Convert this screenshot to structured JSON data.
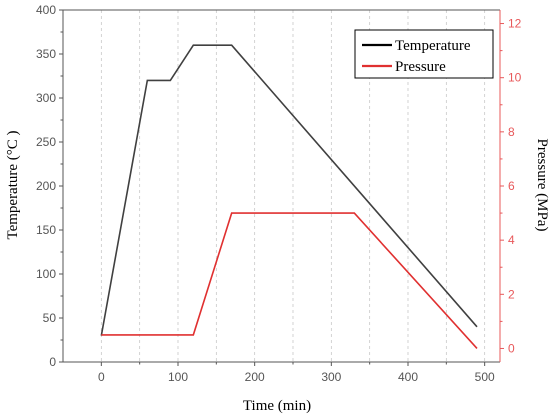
{
  "chart_data": {
    "type": "line",
    "xlabel": "Time (min)",
    "ylabel_left": "Temperature (°C )",
    "ylabel_right": "Pressure (MPa)",
    "xlim": [
      -50,
      520
    ],
    "ylim_left": [
      0,
      400
    ],
    "ylim_right": [
      -0.5,
      12.5
    ],
    "x_ticks": [
      "0",
      "100",
      "200",
      "300",
      "400",
      "500"
    ],
    "y_left_ticks": [
      "0",
      "50",
      "100",
      "150",
      "200",
      "250",
      "300",
      "350",
      "400"
    ],
    "y_right_ticks": [
      "0",
      "2",
      "4",
      "6",
      "8",
      "10",
      "12"
    ],
    "grid": "vertical dashed gridlines",
    "legend_position": "top-right",
    "colors": {
      "left_axis": "#555555",
      "right_axis": "#e8585a",
      "temperature": "#404040",
      "pressure": "#e03030"
    },
    "series": [
      {
        "name": "Temperature",
        "axis": "left",
        "x": [
          0,
          60,
          90,
          120,
          170,
          490
        ],
        "y": [
          30,
          320,
          320,
          360,
          360,
          40
        ]
      },
      {
        "name": "Pressure",
        "axis": "right",
        "x": [
          0,
          120,
          170,
          330,
          490
        ],
        "y": [
          0.5,
          0.5,
          5,
          5,
          0
        ]
      }
    ]
  }
}
